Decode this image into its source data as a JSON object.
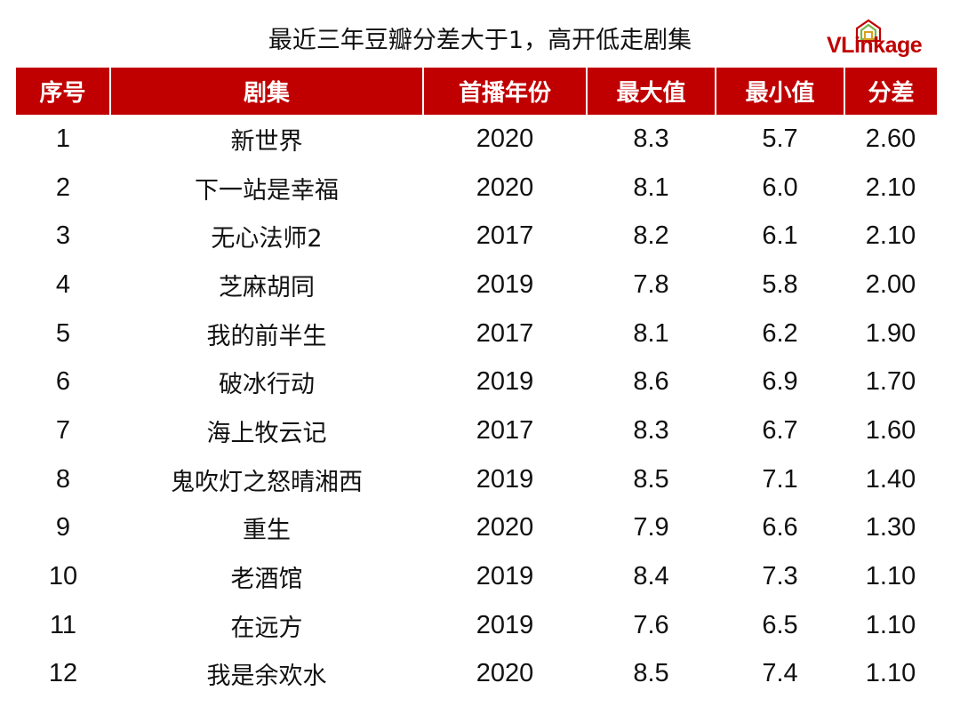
{
  "title": "最近三年豆瓣分差大于1，高开低走剧集",
  "logo": {
    "text": "VLinkage",
    "icon": "house-frame-logo-icon"
  },
  "colors": {
    "header_bg": "#c00000",
    "header_text": "#ffffff",
    "logo": "#c00000",
    "body_text": "#111111"
  },
  "chart_data": {
    "type": "table",
    "title": "最近三年豆瓣分差大于1，高开低走剧集",
    "columns": [
      "序号",
      "剧集",
      "首播年份",
      "最大值",
      "最小值",
      "分差"
    ],
    "rows": [
      [
        "1",
        "新世界",
        "2020",
        "8.3",
        "5.7",
        "2.60"
      ],
      [
        "2",
        "下一站是幸福",
        "2020",
        "8.1",
        "6.0",
        "2.10"
      ],
      [
        "3",
        "无心法师2",
        "2017",
        "8.2",
        "6.1",
        "2.10"
      ],
      [
        "4",
        "芝麻胡同",
        "2019",
        "7.8",
        "5.8",
        "2.00"
      ],
      [
        "5",
        "我的前半生",
        "2017",
        "8.1",
        "6.2",
        "1.90"
      ],
      [
        "6",
        "破冰行动",
        "2019",
        "8.6",
        "6.9",
        "1.70"
      ],
      [
        "7",
        "海上牧云记",
        "2017",
        "8.3",
        "6.7",
        "1.60"
      ],
      [
        "8",
        "鬼吹灯之怒晴湘西",
        "2019",
        "8.5",
        "7.1",
        "1.40"
      ],
      [
        "9",
        "重生",
        "2020",
        "7.9",
        "6.6",
        "1.30"
      ],
      [
        "10",
        "老酒馆",
        "2019",
        "8.4",
        "7.3",
        "1.10"
      ],
      [
        "11",
        "在远方",
        "2019",
        "7.6",
        "6.5",
        "1.10"
      ],
      [
        "12",
        "我是余欢水",
        "2020",
        "8.5",
        "7.4",
        "1.10"
      ]
    ]
  }
}
